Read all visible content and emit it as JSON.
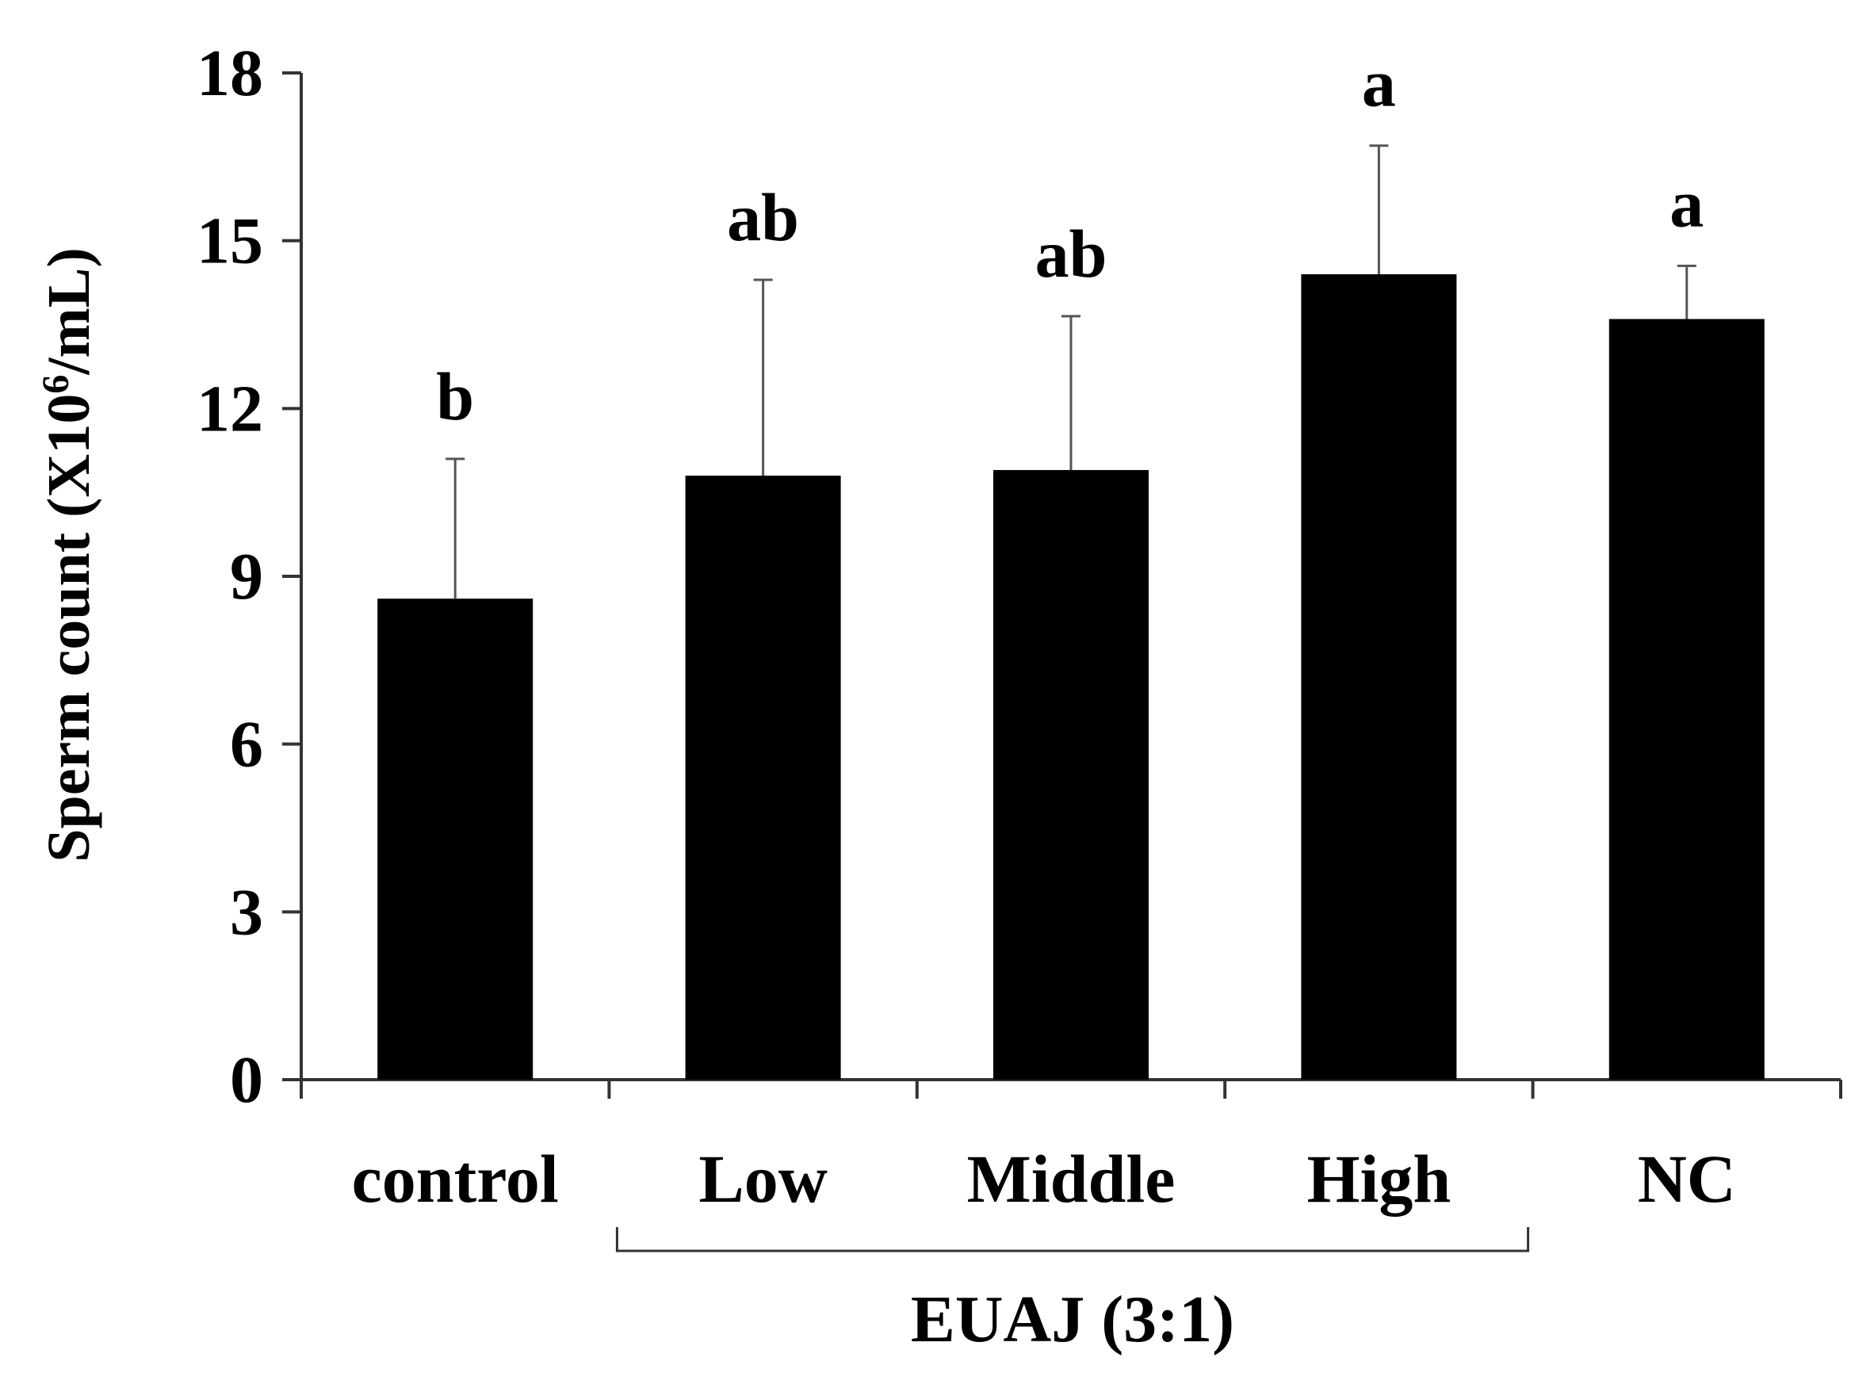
{
  "chart_data": {
    "type": "bar",
    "categories": [
      "control",
      "Low",
      "Middle",
      "High",
      "NC"
    ],
    "values": [
      8.6,
      10.8,
      10.9,
      14.4,
      13.6
    ],
    "errors": [
      2.5,
      3.5,
      2.75,
      2.3,
      0.95
    ],
    "significance": [
      "b",
      "ab",
      "ab",
      "a",
      "a"
    ],
    "ylabel_main": "Sperm count (",
    "ylabel_unit": "X10",
    "ylabel_exp": "6",
    "ylabel_tail": "/mL)",
    "yticks": [
      "0",
      "3",
      "6",
      "9",
      "12",
      "15",
      "18"
    ],
    "ylim": [
      0,
      18
    ],
    "group": {
      "label": "EUAJ (3:1)",
      "categories": [
        "Low",
        "Middle",
        "High"
      ]
    },
    "bar_color": "#000000",
    "grid": false,
    "legend": "none"
  }
}
